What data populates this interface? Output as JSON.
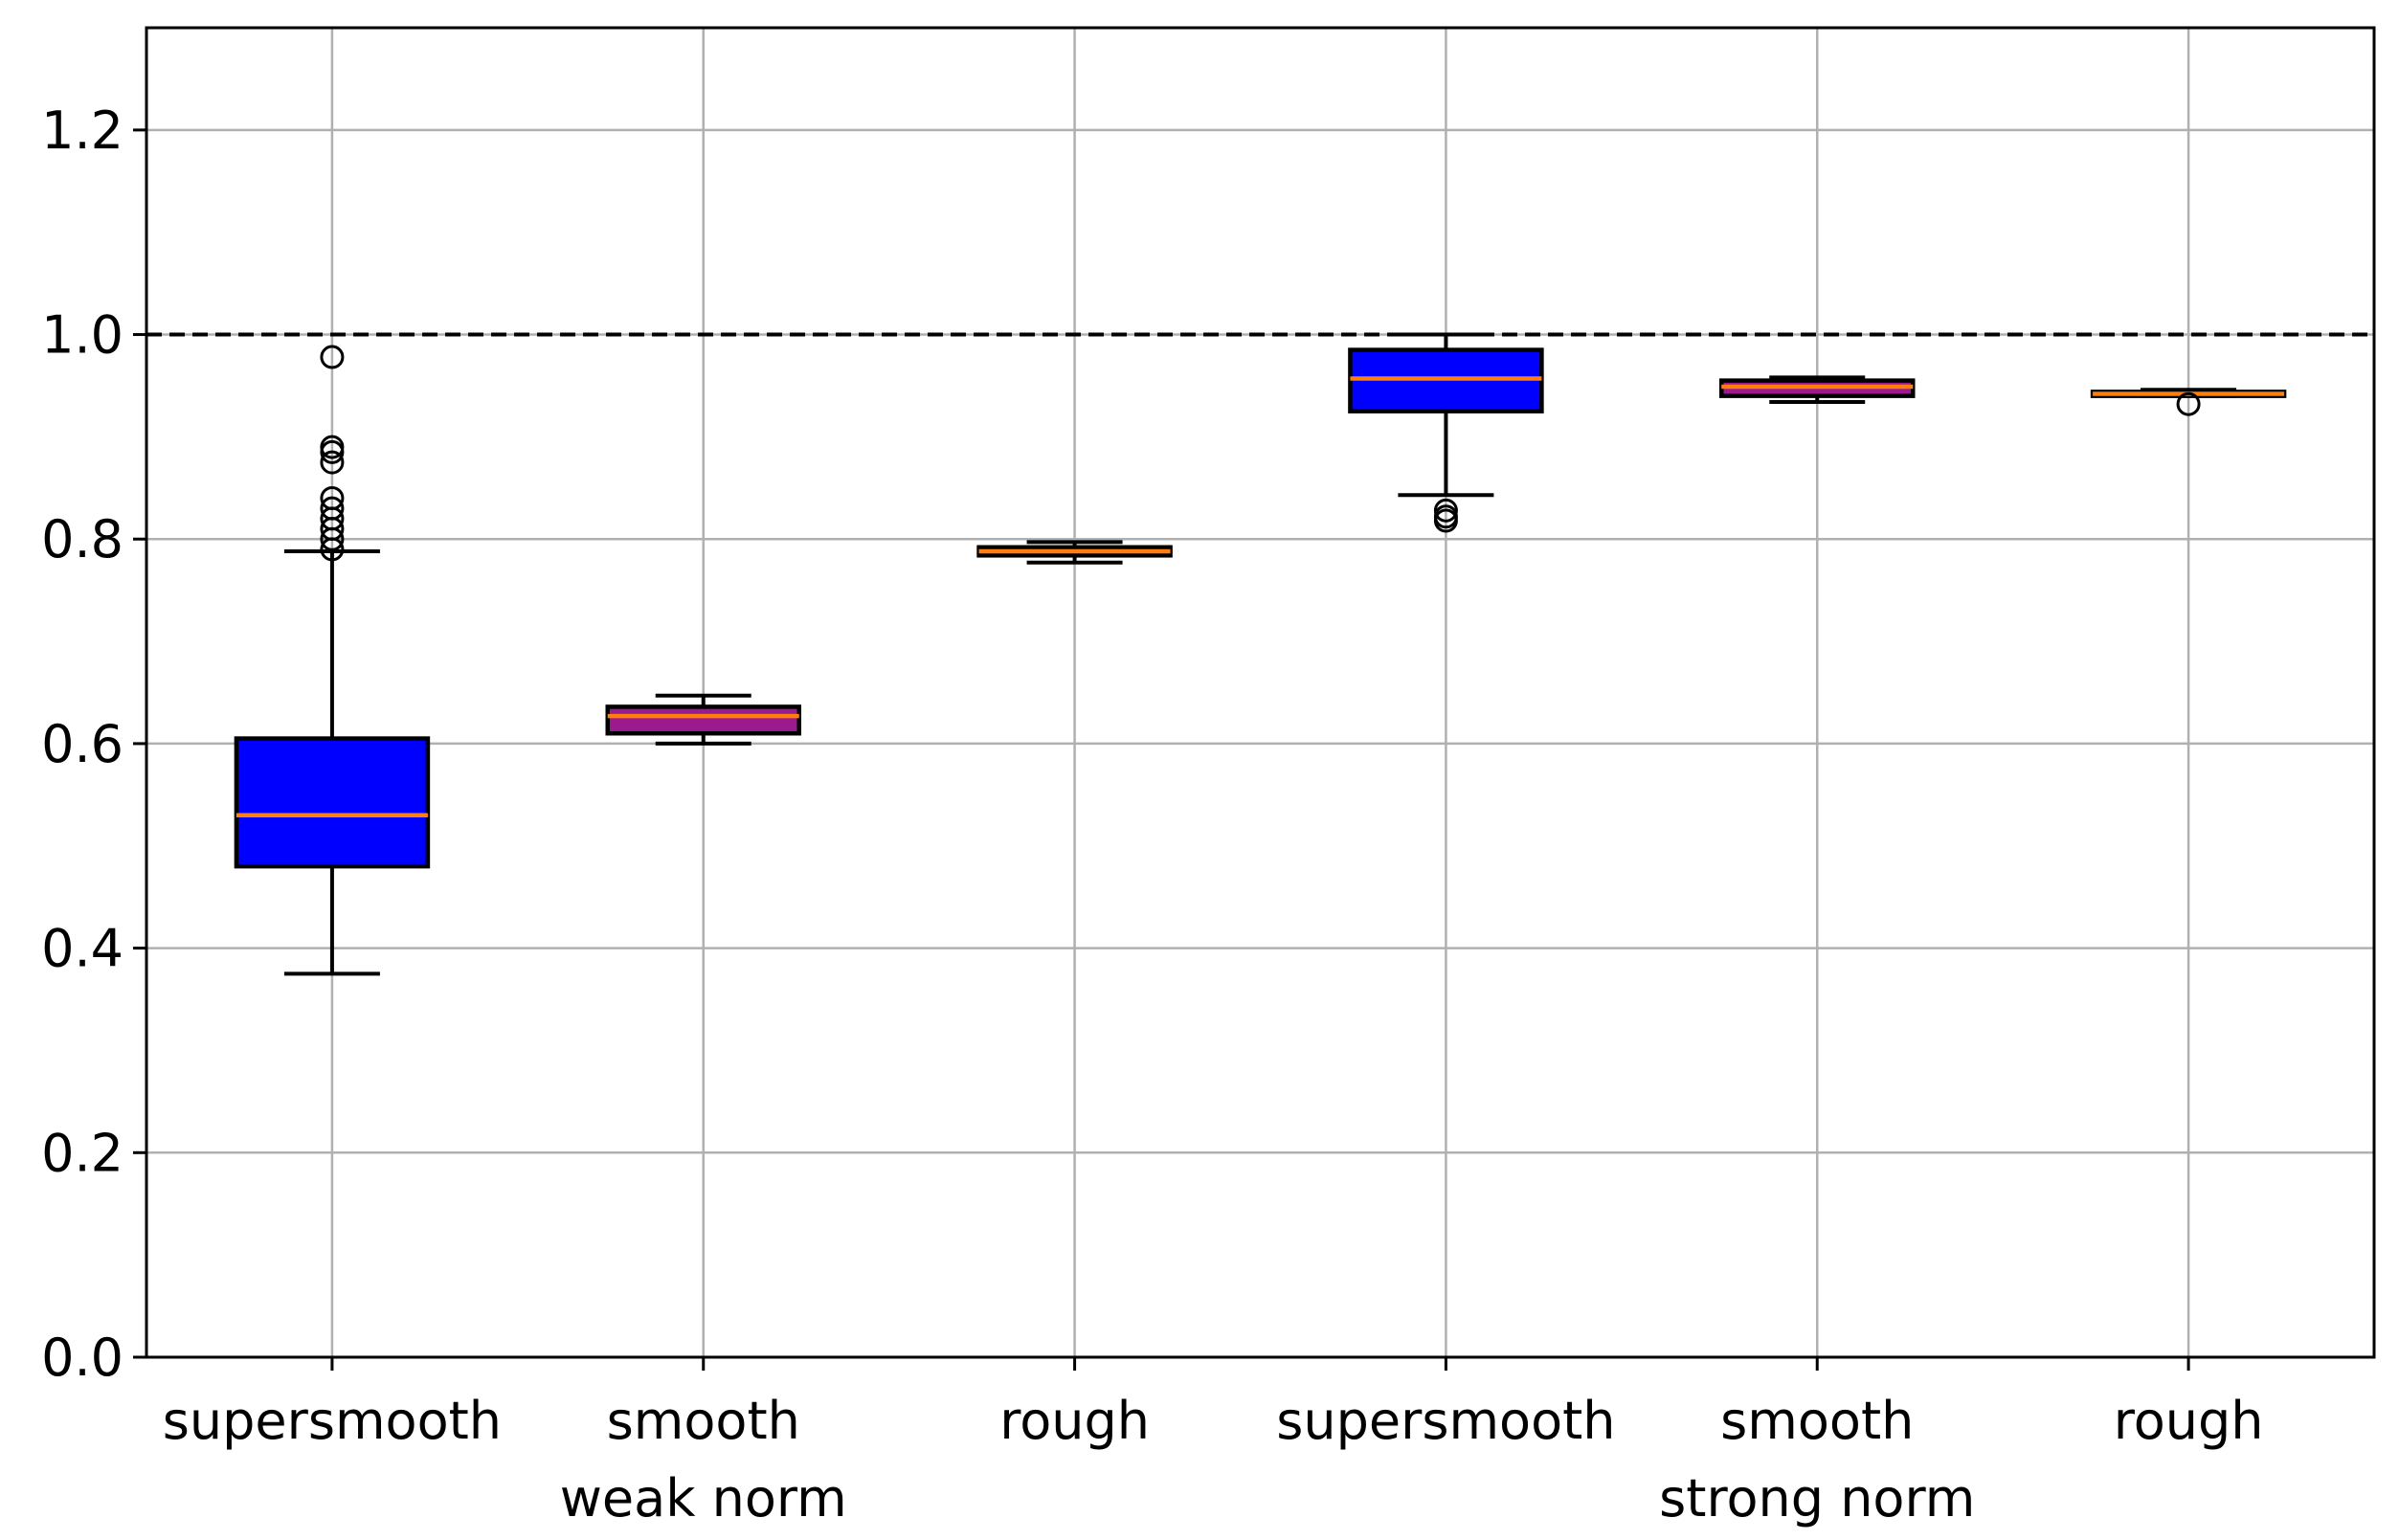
{
  "chart_data": {
    "type": "box",
    "title": "",
    "xlabel": "",
    "ylabel": "",
    "ylim": [
      0.0,
      1.3
    ],
    "yticks": [
      "0.0",
      "0.2",
      "0.4",
      "0.6",
      "0.8",
      "1.0",
      "1.2"
    ],
    "ytick_values": [
      0.0,
      0.2,
      0.4,
      0.6,
      0.8,
      1.0,
      1.2
    ],
    "grid": true,
    "reference_line": {
      "y": 1.0,
      "style": "dashed",
      "color": "#000000"
    },
    "categories": [
      "supersmooth",
      "smooth",
      "rough",
      "supersmooth",
      "smooth",
      "rough"
    ],
    "group_labels": [
      {
        "label": "weak norm",
        "under_category_index": 1
      },
      {
        "label": "strong norm",
        "under_category_index": 4
      }
    ],
    "boxes": [
      {
        "q1": 0.48,
        "median": 0.53,
        "q3": 0.605,
        "whisker_low": 0.375,
        "whisker_high": 0.788,
        "fill": "#0000ff",
        "outliers": [
          0.79,
          0.8,
          0.81,
          0.82,
          0.83,
          0.84,
          0.875,
          0.885,
          0.89,
          0.978
        ]
      },
      {
        "q1": 0.61,
        "median": 0.627,
        "q3": 0.636,
        "whisker_low": 0.6,
        "whisker_high": 0.647,
        "fill": "#9b1a8e",
        "outliers": []
      },
      {
        "q1": 0.784,
        "median": 0.788,
        "q3": 0.792,
        "whisker_low": 0.777,
        "whisker_high": 0.797,
        "fill": "#9b1a8e",
        "outliers": []
      },
      {
        "q1": 0.925,
        "median": 0.957,
        "q3": 0.985,
        "whisker_low": 0.843,
        "whisker_high": 1.0,
        "fill": "#0000ff",
        "outliers": [
          0.818,
          0.822,
          0.828
        ]
      },
      {
        "q1": 0.94,
        "median": 0.949,
        "q3": 0.955,
        "whisker_low": 0.934,
        "whisker_high": 0.958,
        "fill": "#9b1a8e",
        "outliers": []
      },
      {
        "q1": 0.94,
        "median": 0.942,
        "q3": 0.944,
        "whisker_low": 0.94,
        "whisker_high": 0.946,
        "fill": "#9b1a8e",
        "outliers": [
          0.932
        ]
      }
    ],
    "colors": {
      "box_edge": "#000000",
      "median": "#ff7f0e",
      "grid": "#b0b0b0"
    }
  }
}
